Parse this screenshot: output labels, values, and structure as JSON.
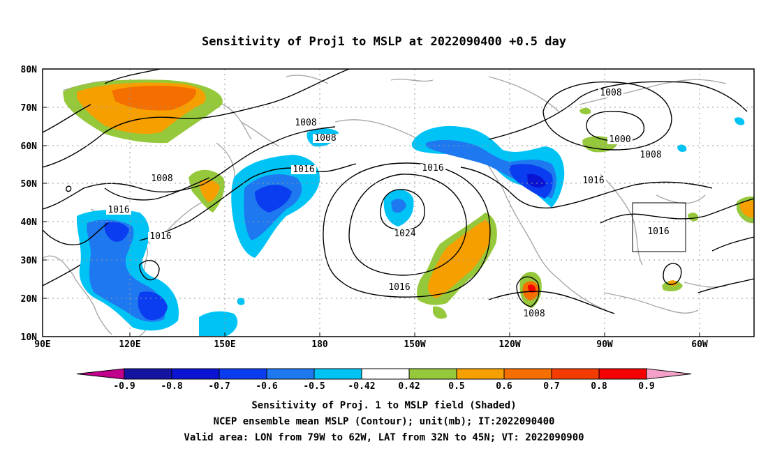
{
  "title": "Sensitivity of Proj1 to MSLP at 2022090400 +0.5 day",
  "map": {
    "lon_labels": [
      "90E",
      "120E",
      "150E",
      "180",
      "150W",
      "120W",
      "90W",
      "60W"
    ],
    "lat_labels": [
      "80N",
      "70N",
      "60N",
      "50N",
      "40N",
      "30N",
      "20N",
      "10N"
    ],
    "contour_labels": [
      "1008",
      "1008",
      "1008",
      "1016",
      "1016",
      "1016",
      "1016",
      "1024",
      "1016",
      "1008",
      "1008",
      "1000",
      "1008",
      "1016",
      "1016"
    ],
    "box_label": "Valid area"
  },
  "colorbar": {
    "labels": [
      "-0.9",
      "-0.8",
      "-0.7",
      "-0.6",
      "-0.5",
      "-0.42",
      "0.42",
      "0.5",
      "0.6",
      "0.7",
      "0.8",
      "0.9"
    ],
    "colors": [
      "#1414a0",
      "#0a14d2",
      "#0a3cf0",
      "#1e78f0",
      "#00c3f5",
      "#ffffff",
      "#96c83c",
      "#f5a000",
      "#f56e00",
      "#f53c00",
      "#f50000"
    ],
    "left_arrow": "#c0008c",
    "right_arrow": "#f5a0c8"
  },
  "footer": {
    "line1": "Sensitivity of Proj. 1 to MSLP field (Shaded)",
    "line2": "NCEP ensemble mean MSLP (Contour); unit(mb); IT:2022090400",
    "line3": "Valid area: LON from 79W to 62W, LAT from 32N to 45N; VT: 2022090900"
  }
}
